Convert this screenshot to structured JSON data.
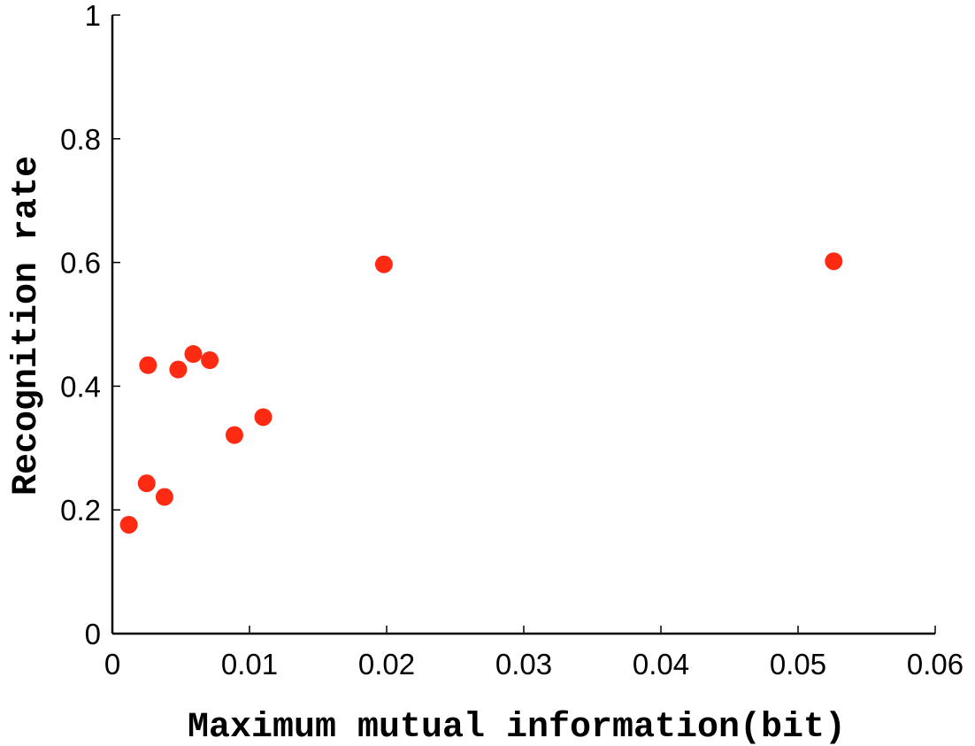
{
  "chart_data": {
    "type": "scatter",
    "title": "",
    "xlabel": "Maximum mutual information(bit)",
    "ylabel": "Recognition rate",
    "xlim": [
      0,
      0.06
    ],
    "ylim": [
      0,
      1
    ],
    "xticks": [
      0,
      0.01,
      0.02,
      0.03,
      0.04,
      0.05,
      0.06
    ],
    "yticks": [
      0,
      0.2,
      0.4,
      0.6,
      0.8,
      1
    ],
    "xtick_labels": [
      "0",
      "0.01",
      "0.02",
      "0.03",
      "0.04",
      "0.05",
      "0.06"
    ],
    "ytick_labels": [
      "0",
      "0.2",
      "0.4",
      "0.6",
      "0.8",
      "1"
    ],
    "grid": false,
    "marker_color": "#ff2a12",
    "series": [
      {
        "points": [
          {
            "x": 0.0012,
            "y": 0.176
          },
          {
            "x": 0.0025,
            "y": 0.243
          },
          {
            "x": 0.0026,
            "y": 0.434
          },
          {
            "x": 0.0038,
            "y": 0.221
          },
          {
            "x": 0.0048,
            "y": 0.427
          },
          {
            "x": 0.0059,
            "y": 0.452
          },
          {
            "x": 0.0071,
            "y": 0.442
          },
          {
            "x": 0.0089,
            "y": 0.321
          },
          {
            "x": 0.011,
            "y": 0.35
          },
          {
            "x": 0.0198,
            "y": 0.597
          },
          {
            "x": 0.0526,
            "y": 0.602
          }
        ]
      }
    ]
  }
}
